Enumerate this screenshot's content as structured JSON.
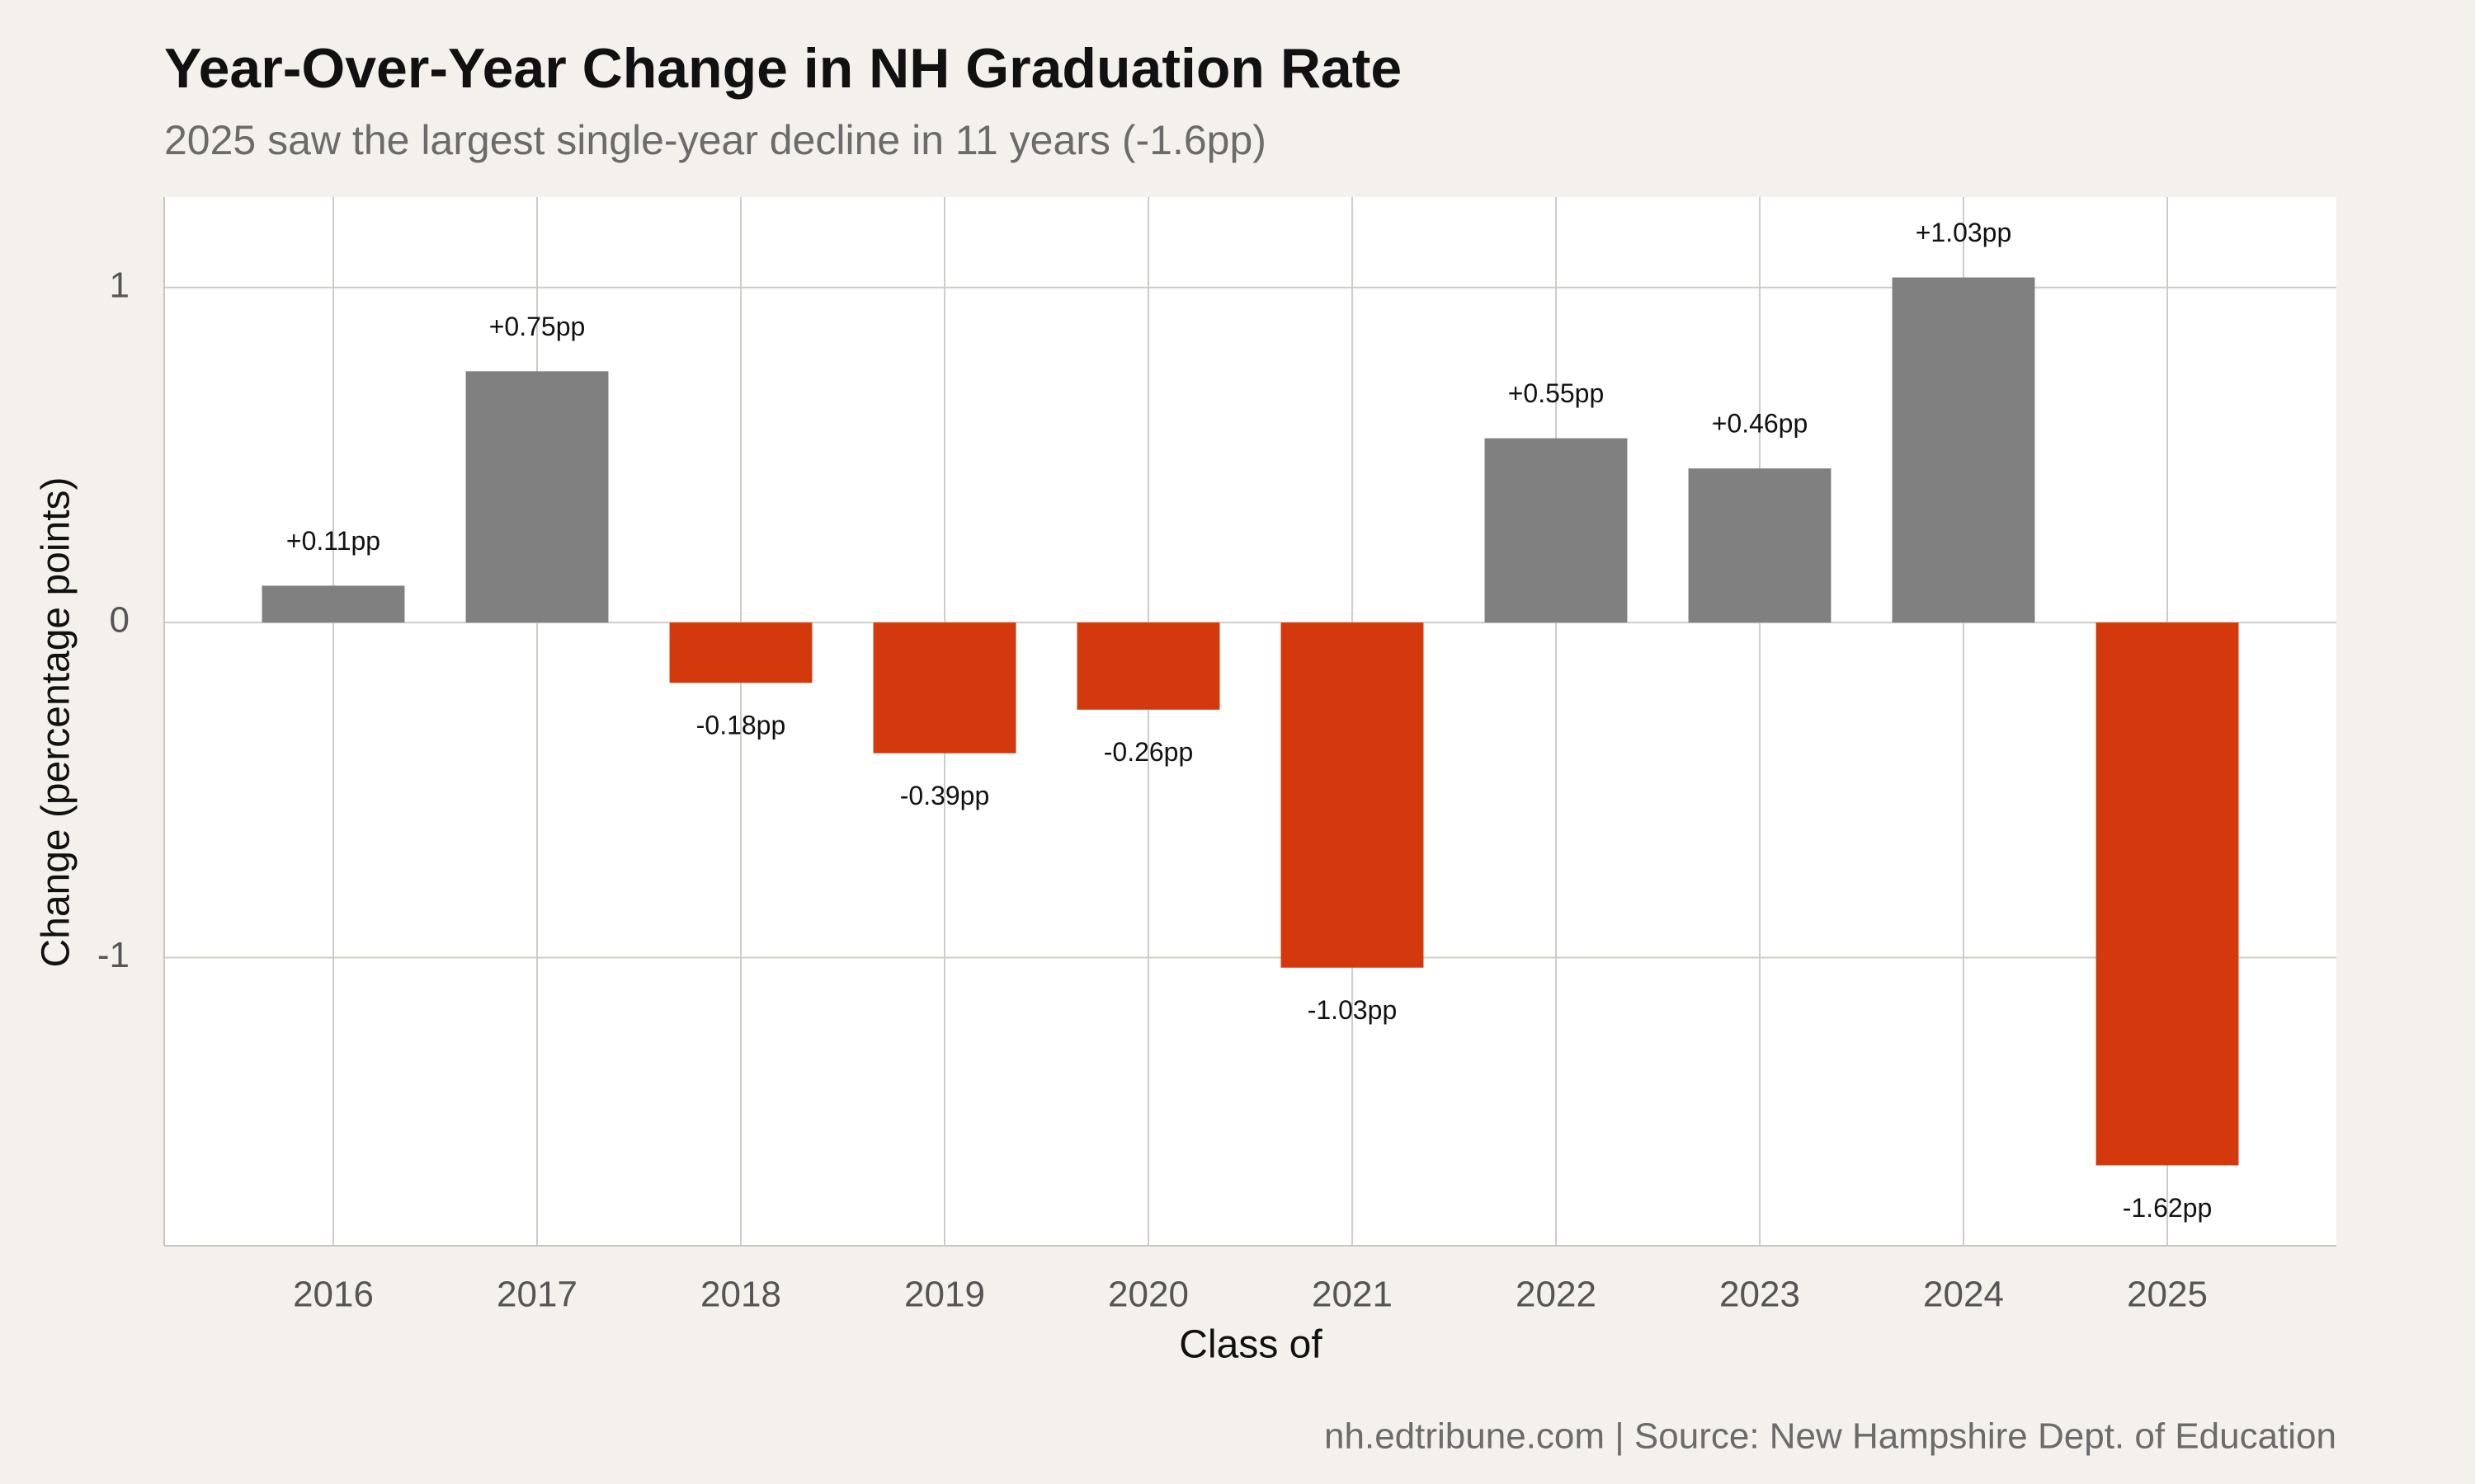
{
  "chart_data": {
    "type": "bar",
    "title": "Year-Over-Year Change in NH Graduation Rate",
    "subtitle": "2025 saw the largest single-year decline in 11 years (-1.6pp)",
    "x_label": "Class of",
    "y_label": "Change (percentage points)",
    "caption": "nh.edtribune.com | Source: New Hampshire Dept. of Education",
    "categories": [
      "2016",
      "2017",
      "2018",
      "2019",
      "2020",
      "2021",
      "2022",
      "2023",
      "2024",
      "2025"
    ],
    "values": [
      0.11,
      0.75,
      -0.18,
      -0.39,
      -0.26,
      -1.03,
      0.55,
      0.46,
      1.03,
      -1.62
    ],
    "value_labels": [
      "+0.11pp",
      "+0.75pp",
      "-0.18pp",
      "-0.39pp",
      "-0.26pp",
      "-1.03pp",
      "+0.55pp",
      "+0.46pp",
      "+1.03pp",
      "-1.62pp"
    ],
    "positive_color": "#808080",
    "negative_color": "#d4380d",
    "ylim": [
      -1.86,
      1.27
    ],
    "yticks": [
      -1,
      0,
      1
    ],
    "grid": true
  }
}
